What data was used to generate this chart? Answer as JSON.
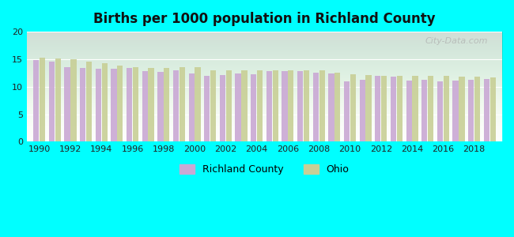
{
  "title": "Births per 1000 population in Richland County",
  "background_color": "#00FFFF",
  "ylim": [
    0,
    20
  ],
  "yticks": [
    0,
    5,
    10,
    15,
    20
  ],
  "years": [
    1990,
    1991,
    1992,
    1993,
    1994,
    1995,
    1996,
    1997,
    1998,
    1999,
    2000,
    2001,
    2002,
    2003,
    2004,
    2005,
    2006,
    2007,
    2008,
    2009,
    2010,
    2011,
    2012,
    2013,
    2014,
    2015,
    2016,
    2017,
    2018,
    2019
  ],
  "richland_county": [
    14.9,
    14.5,
    13.6,
    13.4,
    13.3,
    13.2,
    13.4,
    12.8,
    12.7,
    13.0,
    12.4,
    12.0,
    12.1,
    12.4,
    12.2,
    12.9,
    12.9,
    12.8,
    12.5,
    12.4,
    11.0,
    11.2,
    12.0,
    11.9,
    11.1,
    11.2,
    11.0,
    11.1,
    11.2,
    11.4
  ],
  "ohio": [
    15.3,
    15.1,
    15.0,
    14.6,
    14.3,
    13.9,
    13.6,
    13.4,
    13.4,
    13.5,
    13.6,
    13.0,
    13.0,
    13.0,
    13.0,
    13.0,
    13.0,
    13.0,
    13.0,
    12.5,
    12.2,
    12.1,
    12.0,
    12.0,
    12.0,
    12.0,
    12.0,
    11.8,
    11.8,
    11.7
  ],
  "richland_color": "#c9a8d4",
  "ohio_color": "#c8cf96",
  "bar_width": 0.4,
  "xtick_years": [
    1990,
    1992,
    1994,
    1996,
    1998,
    2000,
    2002,
    2004,
    2006,
    2008,
    2010,
    2012,
    2014,
    2016,
    2018
  ],
  "watermark": "City-Data.com",
  "legend_richland": "Richland County",
  "legend_ohio": "Ohio"
}
